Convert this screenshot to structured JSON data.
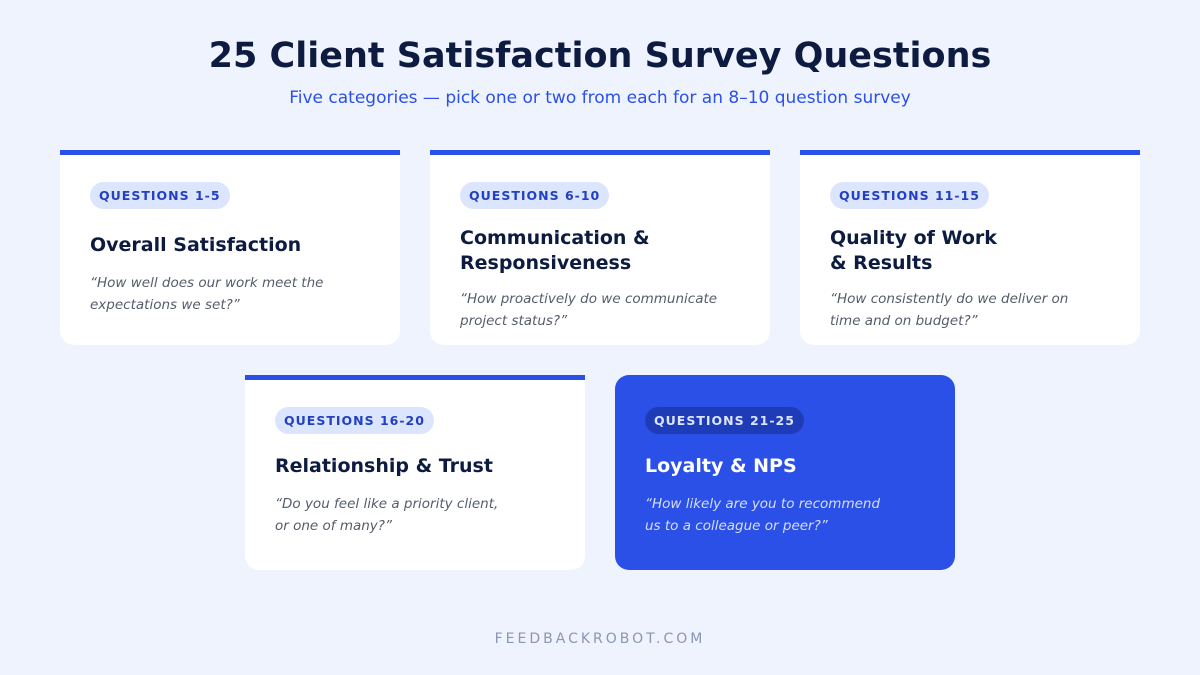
{
  "header": {
    "title": "25 Client Satisfaction Survey Questions",
    "subtitle": "Five categories — pick one or two from each for an 8–10 question survey"
  },
  "cards": [
    {
      "badge": "QUESTIONS 1-5",
      "title": "Overall Satisfaction",
      "quote": "“How well does our work meet the expectations we set?”"
    },
    {
      "badge": "QUESTIONS 6-10",
      "title": "Communication & Responsiveness",
      "quote": "“How proactively do we communicate project status?”"
    },
    {
      "badge": "QUESTIONS 11-15",
      "title": "Quality of Work & Results",
      "quote": "“How consistently do we deliver on time and on budget?”"
    },
    {
      "badge": "QUESTIONS 16-20",
      "title": "Relationship & Trust",
      "quote": "“Do you feel like a priority client, or one of many?”"
    },
    {
      "badge": "QUESTIONS 21-25",
      "title": "Loyalty & NPS",
      "quote": "“How likely are you to recommend us to a colleague or peer?”"
    }
  ],
  "footer": "FEEDBACKROBOT.COM"
}
